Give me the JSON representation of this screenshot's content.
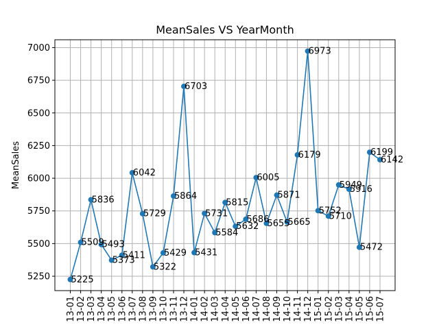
{
  "chart_data": {
    "type": "line",
    "title": "MeanSales VS YearMonth",
    "xlabel": "",
    "ylabel": "MeanSales",
    "ylim": [
      5140,
      7060
    ],
    "yticks": [
      5250,
      5500,
      5750,
      6000,
      6250,
      6500,
      6750,
      7000
    ],
    "grid": true,
    "categories": [
      "13-01",
      "13-02",
      "13-03",
      "13-04",
      "13-05",
      "13-06",
      "13-07",
      "13-08",
      "13-09",
      "13-10",
      "13-11",
      "13-12",
      "14-01",
      "14-02",
      "14-03",
      "14-04",
      "14-05",
      "14-06",
      "14-07",
      "14-08",
      "14-09",
      "14-10",
      "14-11",
      "14-12",
      "15-01",
      "15-02",
      "15-03",
      "15-04",
      "15-05",
      "15-06",
      "15-07"
    ],
    "series": [
      {
        "values": [
          5225,
          5509,
          5836,
          5493,
          5373,
          5411,
          6042,
          5729,
          5322,
          5429,
          5864,
          6703,
          5431,
          5731,
          5584,
          5815,
          5632,
          5686,
          6005,
          5655,
          5871,
          5665,
          6179,
          6973,
          5752,
          5710,
          5949,
          5916,
          5472,
          6199,
          6142
        ],
        "labels": [
          "5225",
          "5509",
          "5836",
          "5493",
          "5373",
          "5411",
          "6042",
          "5729",
          "5322",
          "5429",
          "5864",
          "6703",
          "5431",
          "5731",
          "5584",
          "5815",
          "5632",
          "5686",
          "6005",
          "5655",
          "5871",
          "5665",
          "6179",
          "6973",
          "5752",
          "5710",
          "5949",
          "5916",
          "5472",
          "6199",
          "6142"
        ],
        "color": "#1f77b4"
      }
    ]
  }
}
